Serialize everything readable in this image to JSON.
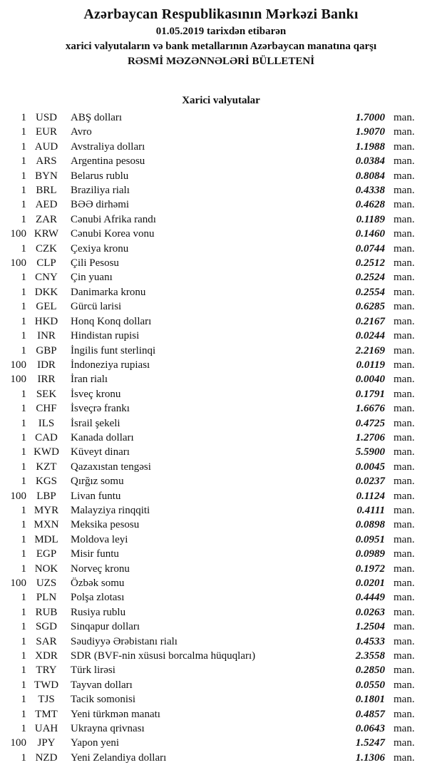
{
  "header": {
    "title": "Azərbaycan Respublikasının Mərkəzi Bankı",
    "date_line": "01.05.2019 tarixdən etibarən",
    "scope_line": "xarici valyutaların və bank metallarının Azərbaycan manatına qarşı",
    "bulletin_line": "RƏSMİ MƏZƏNNƏLƏRİ BÜLLETENİ"
  },
  "section": {
    "title": "Xarici valyutalar"
  },
  "table": {
    "rows": [
      {
        "qty": "1",
        "code": "USD",
        "name": "ABŞ dolları",
        "rate": "1.7000",
        "unit": "man."
      },
      {
        "qty": "1",
        "code": "EUR",
        "name": "Avro",
        "rate": "1.9070",
        "unit": "man."
      },
      {
        "qty": "1",
        "code": "AUD",
        "name": "Avstraliya dolları",
        "rate": "1.1988",
        "unit": "man."
      },
      {
        "qty": "1",
        "code": "ARS",
        "name": "Argentina pesosu",
        "rate": "0.0384",
        "unit": "man."
      },
      {
        "qty": "1",
        "code": "BYN",
        "name": "Belarus rublu",
        "rate": "0.8084",
        "unit": "man."
      },
      {
        "qty": "1",
        "code": "BRL",
        "name": "Braziliya rialı",
        "rate": "0.4338",
        "unit": "man."
      },
      {
        "qty": "1",
        "code": "AED",
        "name": "BƏƏ dirhəmi",
        "rate": "0.4628",
        "unit": "man."
      },
      {
        "qty": "1",
        "code": "ZAR",
        "name": "Cənubi Afrika randı",
        "rate": "0.1189",
        "unit": "man."
      },
      {
        "qty": "100",
        "code": "KRW",
        "name": "Cənubi Korea vonu",
        "rate": "0.1460",
        "unit": "man."
      },
      {
        "qty": "1",
        "code": "CZK",
        "name": "Çexiya kronu",
        "rate": "0.0744",
        "unit": "man."
      },
      {
        "qty": "100",
        "code": "CLP",
        "name": "Çili Pesosu",
        "rate": "0.2512",
        "unit": "man."
      },
      {
        "qty": "1",
        "code": "CNY",
        "name": "Çin yuanı",
        "rate": "0.2524",
        "unit": "man."
      },
      {
        "qty": "1",
        "code": "DKK",
        "name": "Danimarka kronu",
        "rate": "0.2554",
        "unit": "man."
      },
      {
        "qty": "1",
        "code": "GEL",
        "name": "Gürcü larisi",
        "rate": "0.6285",
        "unit": "man."
      },
      {
        "qty": "1",
        "code": "HKD",
        "name": "Honq Konq dolları",
        "rate": "0.2167",
        "unit": "man."
      },
      {
        "qty": "1",
        "code": "INR",
        "name": "Hindistan rupisi",
        "rate": "0.0244",
        "unit": "man."
      },
      {
        "qty": "1",
        "code": "GBP",
        "name": "İngilis funt sterlinqi",
        "rate": "2.2169",
        "unit": "man."
      },
      {
        "qty": "100",
        "code": "IDR",
        "name": "İndoneziya rupiası",
        "rate": "0.0119",
        "unit": "man."
      },
      {
        "qty": "100",
        "code": "IRR",
        "name": "İran rialı",
        "rate": "0.0040",
        "unit": "man."
      },
      {
        "qty": "1",
        "code": "SEK",
        "name": "İsveç kronu",
        "rate": "0.1791",
        "unit": "man."
      },
      {
        "qty": "1",
        "code": "CHF",
        "name": "İsveçrə frankı",
        "rate": "1.6676",
        "unit": "man."
      },
      {
        "qty": "1",
        "code": "ILS",
        "name": "İsrail şekeli",
        "rate": "0.4725",
        "unit": "man."
      },
      {
        "qty": "1",
        "code": "CAD",
        "name": "Kanada dolları",
        "rate": "1.2706",
        "unit": "man."
      },
      {
        "qty": "1",
        "code": "KWD",
        "name": "Küveyt dinarı",
        "rate": "5.5900",
        "unit": "man."
      },
      {
        "qty": "1",
        "code": "KZT",
        "name": "Qazaxıstan tengəsi",
        "rate": "0.0045",
        "unit": "man."
      },
      {
        "qty": "1",
        "code": "KGS",
        "name": "Qırğız somu",
        "rate": "0.0237",
        "unit": "man."
      },
      {
        "qty": "100",
        "code": "LBP",
        "name": "Livan funtu",
        "rate": "0.1124",
        "unit": "man."
      },
      {
        "qty": "1",
        "code": "MYR",
        "name": "Malayziya rinqqiti",
        "rate": "0.4111",
        "unit": "man."
      },
      {
        "qty": "1",
        "code": "MXN",
        "name": "Meksika pesosu",
        "rate": "0.0898",
        "unit": "man."
      },
      {
        "qty": "1",
        "code": "MDL",
        "name": "Moldova leyi",
        "rate": "0.0951",
        "unit": "man."
      },
      {
        "qty": "1",
        "code": "EGP",
        "name": "Misir funtu",
        "rate": "0.0989",
        "unit": "man."
      },
      {
        "qty": "1",
        "code": "NOK",
        "name": "Norveç kronu",
        "rate": "0.1972",
        "unit": "man."
      },
      {
        "qty": "100",
        "code": "UZS",
        "name": "Özbək somu",
        "rate": "0.0201",
        "unit": "man."
      },
      {
        "qty": "1",
        "code": "PLN",
        "name": "Polşa zlotası",
        "rate": "0.4449",
        "unit": "man."
      },
      {
        "qty": "1",
        "code": "RUB",
        "name": "Rusiya rublu",
        "rate": "0.0263",
        "unit": "man."
      },
      {
        "qty": "1",
        "code": "SGD",
        "name": "Sinqapur dolları",
        "rate": "1.2504",
        "unit": "man."
      },
      {
        "qty": "1",
        "code": "SAR",
        "name": "Səudiyyə Ərəbistanı rialı",
        "rate": "0.4533",
        "unit": "man."
      },
      {
        "qty": "1",
        "code": "XDR",
        "name": "SDR (BVF-nin xüsusi borcalma hüquqları)",
        "rate": "2.3558",
        "unit": "man."
      },
      {
        "qty": "1",
        "code": "TRY",
        "name": "Türk lirəsi",
        "rate": "0.2850",
        "unit": "man."
      },
      {
        "qty": "1",
        "code": "TWD",
        "name": "Tayvan dolları",
        "rate": "0.0550",
        "unit": "man."
      },
      {
        "qty": "1",
        "code": "TJS",
        "name": "Tacik somonisi",
        "rate": "0.1801",
        "unit": "man."
      },
      {
        "qty": "1",
        "code": "TMT",
        "name": "Yeni türkmən manatı",
        "rate": "0.4857",
        "unit": "man."
      },
      {
        "qty": "1",
        "code": "UAH",
        "name": "Ukrayna qrivnası",
        "rate": "0.0643",
        "unit": "man."
      },
      {
        "qty": "100",
        "code": "JPY",
        "name": "Yapon yeni",
        "rate": "1.5247",
        "unit": "man."
      },
      {
        "qty": "1",
        "code": "NZD",
        "name": "Yeni Zelandiya dolları",
        "rate": "1.1306",
        "unit": "man."
      }
    ]
  }
}
